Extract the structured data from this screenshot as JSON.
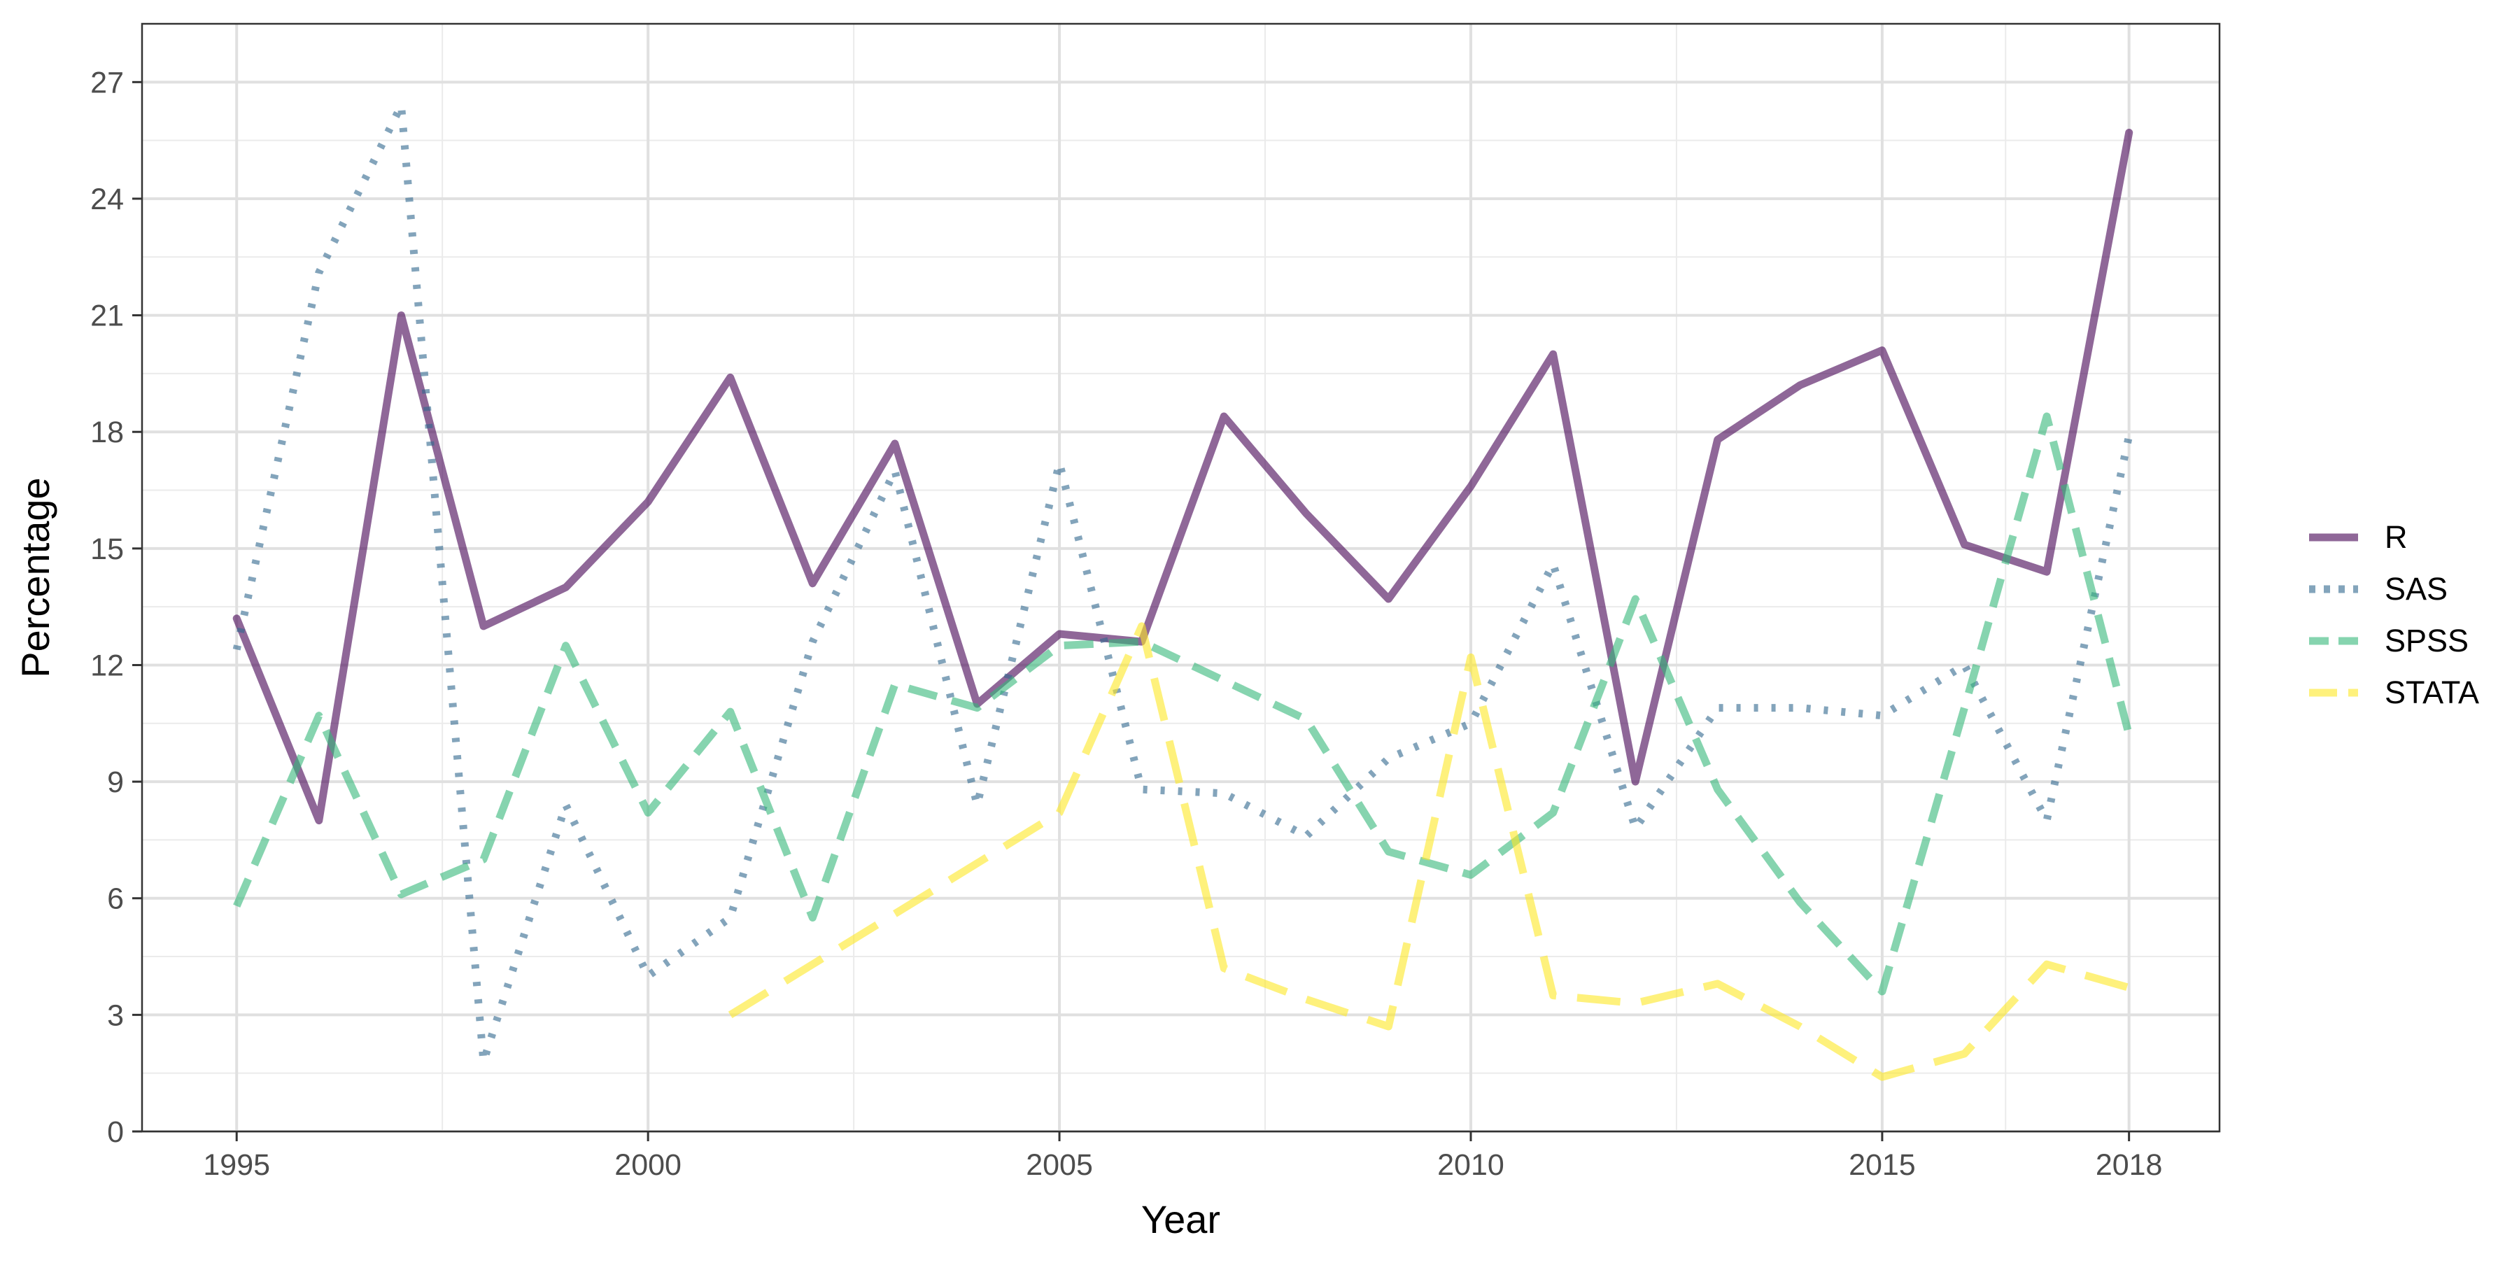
{
  "chart_data": {
    "type": "line",
    "title": "",
    "xlabel": "Year",
    "ylabel": "Percentage",
    "xlim": [
      1993.85,
      2019.1
    ],
    "ylim": [
      0,
      28.5
    ],
    "x_ticks": [
      1995,
      2000,
      2005,
      2010,
      2015,
      2018
    ],
    "x_tick_labels": [
      "1995",
      "2000",
      "2005",
      "2010",
      "2015",
      "2018"
    ],
    "y_ticks": [
      0,
      3,
      6,
      9,
      12,
      15,
      18,
      21,
      24,
      27
    ],
    "y_tick_labels": [
      "0",
      "3",
      "6",
      "9",
      "12",
      "15",
      "18",
      "21",
      "24",
      "27"
    ],
    "grid": true,
    "legend_position": "right",
    "series": [
      {
        "name": "R",
        "color": "#440154",
        "dash": "solid",
        "x": [
          1995,
          1996,
          1997,
          1998,
          1999,
          2000,
          2001,
          2002,
          2003,
          2004,
          2005,
          2006,
          2007,
          2008,
          2009,
          2010,
          2011,
          2012,
          2013,
          2014,
          2015,
          2016,
          2017,
          2018
        ],
        "values": [
          13.2,
          8.0,
          21.0,
          13.0,
          14.0,
          16.2,
          19.4,
          14.1,
          17.7,
          11.0,
          12.8,
          12.6,
          18.4,
          15.9,
          13.7,
          16.6,
          20.0,
          9.0,
          17.8,
          19.2,
          20.1,
          15.1,
          14.4,
          25.7
        ]
      },
      {
        "name": "SAS",
        "color": "#31688E",
        "dash": "dotted",
        "x": [
          1995,
          1996,
          1997,
          1998,
          1999,
          2000,
          2001,
          2002,
          2003,
          2004,
          2005,
          2006,
          2007,
          2008,
          2009,
          2010,
          2011,
          2012,
          2013,
          2014,
          2015,
          2016,
          2017,
          2018
        ],
        "values": [
          12.4,
          22.1,
          26.4,
          1.8,
          8.4,
          4.0,
          5.5,
          12.6,
          17.0,
          8.4,
          17.2,
          8.8,
          8.7,
          7.6,
          9.6,
          10.5,
          14.6,
          7.8,
          10.9,
          10.9,
          10.7,
          12.0,
          8.0,
          17.9
        ]
      },
      {
        "name": "SPSS",
        "color": "#35B779",
        "dash": "dashed",
        "x": [
          1995,
          1996,
          1997,
          1998,
          1999,
          2000,
          2001,
          2002,
          2003,
          2004,
          2005,
          2006,
          2007,
          2008,
          2009,
          2010,
          2011,
          2012,
          2013,
          2014,
          2015,
          2016,
          2017,
          2018
        ],
        "values": [
          5.8,
          10.7,
          6.1,
          7.0,
          12.5,
          8.2,
          10.8,
          5.5,
          11.5,
          10.9,
          12.5,
          12.6,
          11.6,
          10.6,
          7.2,
          6.6,
          8.2,
          13.7,
          8.8,
          5.9,
          3.6,
          10.9,
          18.4,
          10.2
        ]
      },
      {
        "name": "STATA",
        "color": "#FDE725",
        "dash": "longdash",
        "x": [
          2001,
          2002,
          2003,
          2004,
          2005,
          2006,
          2007,
          2008,
          2009,
          2010,
          2011,
          2012,
          2013,
          2014,
          2015,
          2016,
          2017,
          2018
        ],
        "values": [
          3.0,
          4.3,
          5.6,
          6.9,
          8.2,
          13.0,
          4.2,
          3.4,
          2.7,
          12.2,
          3.5,
          3.3,
          3.8,
          2.7,
          1.4,
          2.0,
          4.3,
          3.7
        ]
      }
    ]
  }
}
